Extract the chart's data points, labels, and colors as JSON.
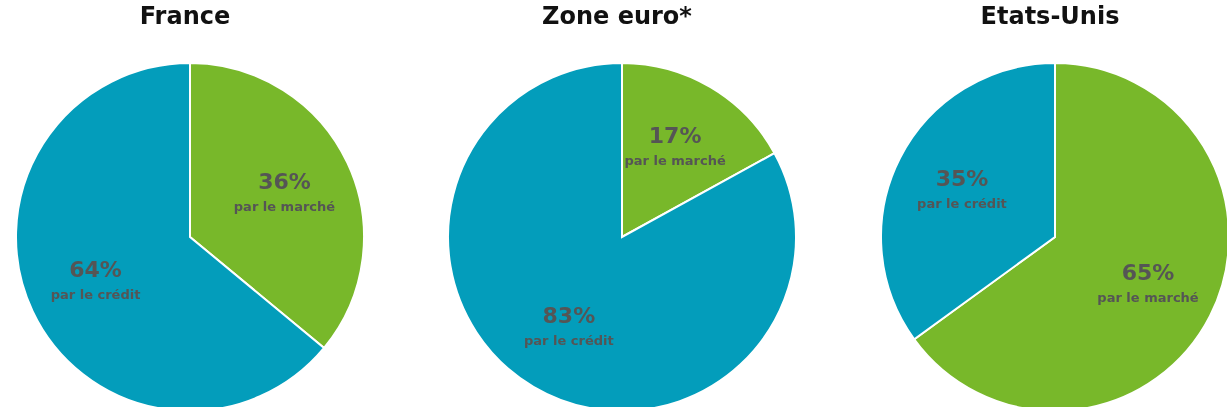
{
  "chart_data": [
    {
      "type": "pie",
      "title": "France",
      "categories": [
        "par le marché",
        "par le crédit"
      ],
      "values": [
        36,
        64
      ],
      "colors": [
        "#78b82a",
        "#039dbb"
      ],
      "value_labels": [
        "36%",
        "64%"
      ],
      "legend": false
    },
    {
      "type": "pie",
      "title": "Zone euro*",
      "categories": [
        "par le marché",
        "par le crédit"
      ],
      "values": [
        17,
        83
      ],
      "colors": [
        "#78b82a",
        "#039dbb"
      ],
      "value_labels": [
        "17%",
        "83%"
      ],
      "legend": false
    },
    {
      "type": "pie",
      "title": "Etats-Unis",
      "categories": [
        "par le marché",
        "par le crédit"
      ],
      "values": [
        65,
        35
      ],
      "colors": [
        "#78b82a",
        "#039dbb"
      ],
      "value_labels": [
        "65%",
        "35%"
      ],
      "legend": false
    }
  ]
}
